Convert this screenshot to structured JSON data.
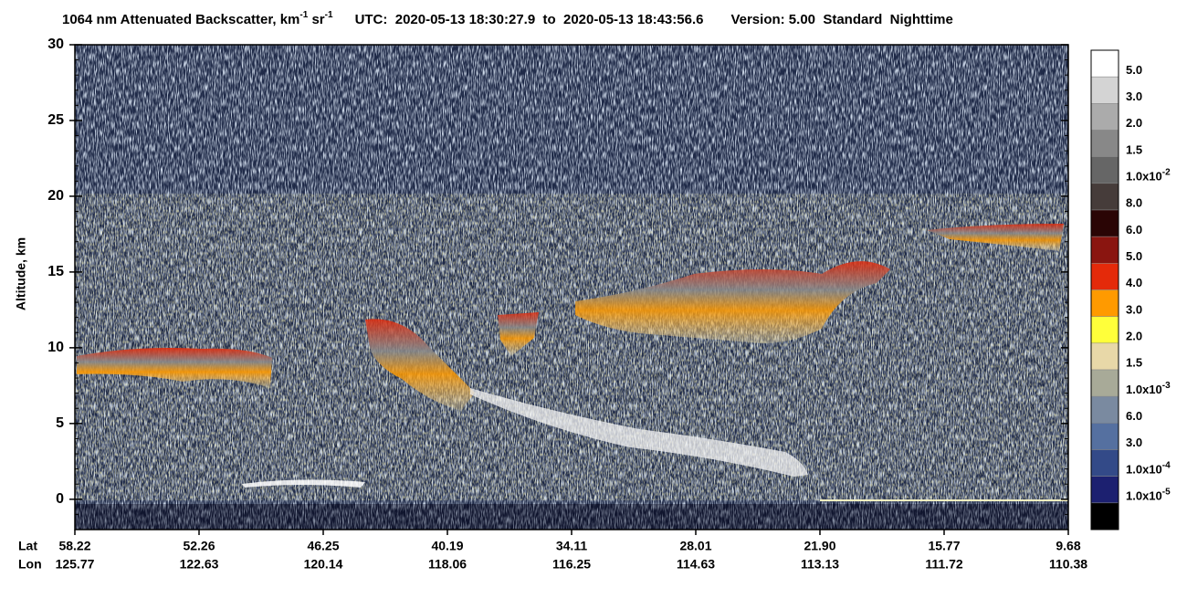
{
  "chart_data": {
    "type": "curtain",
    "title_parts": [
      "1064 nm Attenuated Backscatter, km",
      "-1",
      " sr",
      "-1"
    ],
    "subtitle": "UTC:  2020-05-13 18:30:27.9  to  2020-05-13 18:43:56.6",
    "version": "Version: 5.00  Standard  Nighttime",
    "ylabel": "Altitude, km",
    "ylim": [
      -2,
      30
    ],
    "yticks": [
      0,
      5,
      10,
      15,
      20,
      25,
      30
    ],
    "lat_label": "Lat",
    "lon_label": "Lon",
    "lat": [
      "58.22",
      "52.26",
      "46.25",
      "40.19",
      "34.11",
      "28.01",
      "21.90",
      "15.77",
      "9.68"
    ],
    "lon": [
      "125.77",
      "122.63",
      "120.14",
      "118.06",
      "116.25",
      "114.63",
      "113.13",
      "111.72",
      "110.38"
    ],
    "colorbar": {
      "colors": [
        "#ffffff",
        "#d4d4d4",
        "#ababab",
        "#888888",
        "#666666",
        "#463c3a",
        "#2a0505",
        "#8a1510",
        "#e42a0a",
        "#ff9a00",
        "#ffff3a",
        "#e8d8a8",
        "#a8aa98",
        "#7a8aa0",
        "#5570a0",
        "#334a88",
        "#1c2070",
        "#000000"
      ],
      "labels": [
        {
          "text": "5.0"
        },
        {
          "text": "3.0"
        },
        {
          "text": "2.0"
        },
        {
          "text": "1.5"
        },
        {
          "text": "1.0x10",
          "exponent": "-2"
        },
        {
          "text": "8.0"
        },
        {
          "text": "6.0"
        },
        {
          "text": "5.0"
        },
        {
          "text": "4.0"
        },
        {
          "text": "3.0"
        },
        {
          "text": "2.0"
        },
        {
          "text": "1.5"
        },
        {
          "text": "1.0x10",
          "exponent": "-3"
        },
        {
          "text": "6.0"
        },
        {
          "text": "3.0"
        },
        {
          "text": "1.0x10",
          "exponent": "-4"
        },
        {
          "text": "1.0x10",
          "exponent": "-5"
        }
      ]
    }
  }
}
